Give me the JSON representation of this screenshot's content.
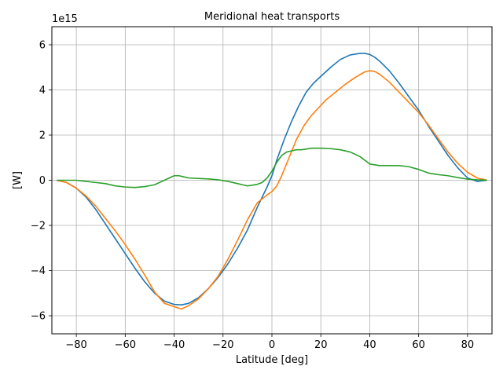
{
  "chart_data": {
    "type": "line",
    "title": "Meridional heat transports",
    "xlabel": "Latitude [deg]",
    "ylabel": "[W]",
    "offset_text": "1e15",
    "xlim": [
      -90,
      90
    ],
    "ylim": [
      -6.8,
      6.8
    ],
    "xticks": [
      -80,
      -60,
      -40,
      -20,
      0,
      20,
      40,
      60,
      80
    ],
    "xtick_labels": [
      "−80",
      "−60",
      "−40",
      "−20",
      "0",
      "20",
      "40",
      "60",
      "80"
    ],
    "yticks": [
      -6,
      -4,
      -2,
      0,
      2,
      4,
      6
    ],
    "ytick_labels": [
      "−6",
      "−4",
      "−2",
      "0",
      "2",
      "4",
      "6"
    ],
    "grid": true,
    "series": [
      {
        "color": "#1f77b4",
        "x": [
          -88,
          -84,
          -80,
          -76,
          -72,
          -68,
          -64,
          -60,
          -56,
          -52,
          -48,
          -44,
          -40,
          -37,
          -34,
          -30,
          -26,
          -22,
          -18,
          -14,
          -10,
          -6,
          -2,
          0,
          2,
          5,
          8,
          11,
          14,
          17,
          20,
          24,
          28,
          32,
          36,
          38,
          40,
          42,
          44,
          48,
          52,
          56,
          60,
          64,
          68,
          72,
          76,
          80,
          84,
          88
        ],
        "y": [
          0,
          -0.1,
          -0.35,
          -0.75,
          -1.3,
          -1.95,
          -2.6,
          -3.25,
          -3.9,
          -4.5,
          -5.0,
          -5.35,
          -5.5,
          -5.52,
          -5.45,
          -5.2,
          -4.8,
          -4.3,
          -3.7,
          -3.0,
          -2.2,
          -1.2,
          -0.3,
          0.2,
          0.9,
          1.8,
          2.6,
          3.3,
          3.9,
          4.3,
          4.6,
          5.0,
          5.35,
          5.55,
          5.62,
          5.62,
          5.57,
          5.45,
          5.28,
          4.85,
          4.3,
          3.7,
          3.1,
          2.4,
          1.75,
          1.1,
          0.55,
          0.1,
          -0.05,
          0
        ]
      },
      {
        "color": "#ff7f0e",
        "x": [
          -88,
          -84,
          -80,
          -76,
          -72,
          -68,
          -64,
          -60,
          -56,
          -52,
          -48,
          -44,
          -40,
          -37,
          -34,
          -30,
          -26,
          -22,
          -18,
          -14,
          -10,
          -6,
          -2,
          0,
          2,
          4,
          7,
          10,
          13,
          16,
          19,
          22,
          26,
          30,
          34,
          38,
          40,
          42,
          44,
          48,
          52,
          56,
          60,
          64,
          68,
          72,
          76,
          80,
          84,
          88
        ],
        "y": [
          0,
          -0.1,
          -0.35,
          -0.7,
          -1.15,
          -1.7,
          -2.25,
          -2.85,
          -3.5,
          -4.2,
          -4.95,
          -5.45,
          -5.6,
          -5.7,
          -5.55,
          -5.25,
          -4.8,
          -4.25,
          -3.5,
          -2.65,
          -1.75,
          -1.0,
          -0.65,
          -0.5,
          -0.25,
          0.2,
          1.0,
          1.8,
          2.4,
          2.85,
          3.2,
          3.55,
          3.9,
          4.25,
          4.55,
          4.8,
          4.85,
          4.82,
          4.7,
          4.35,
          3.9,
          3.45,
          3.0,
          2.45,
          1.85,
          1.25,
          0.75,
          0.35,
          0.1,
          0
        ]
      },
      {
        "color": "#2ca02c",
        "x": [
          -88,
          -84,
          -80,
          -76,
          -72,
          -68,
          -64,
          -60,
          -56,
          -52,
          -48,
          -44,
          -42,
          -40,
          -38,
          -36,
          -34,
          -30,
          -26,
          -22,
          -18,
          -14,
          -12,
          -10,
          -8,
          -6,
          -4,
          -2,
          0,
          2,
          4,
          6,
          8,
          10,
          12,
          14,
          16,
          18,
          20,
          24,
          28,
          32,
          36,
          40,
          44,
          48,
          52,
          56,
          60,
          64,
          68,
          72,
          76,
          80,
          84,
          88
        ],
        "y": [
          0,
          0,
          0,
          -0.05,
          -0.1,
          -0.15,
          -0.25,
          -0.3,
          -0.32,
          -0.28,
          -0.2,
          0.0,
          0.1,
          0.2,
          0.2,
          0.15,
          0.1,
          0.08,
          0.06,
          0.02,
          -0.05,
          -0.15,
          -0.2,
          -0.25,
          -0.22,
          -0.18,
          -0.1,
          0.1,
          0.4,
          0.8,
          1.1,
          1.25,
          1.3,
          1.35,
          1.35,
          1.38,
          1.42,
          1.42,
          1.42,
          1.4,
          1.35,
          1.25,
          1.05,
          0.72,
          0.65,
          0.65,
          0.65,
          0.6,
          0.48,
          0.32,
          0.25,
          0.2,
          0.12,
          0.05,
          0.02,
          0
        ]
      }
    ]
  }
}
